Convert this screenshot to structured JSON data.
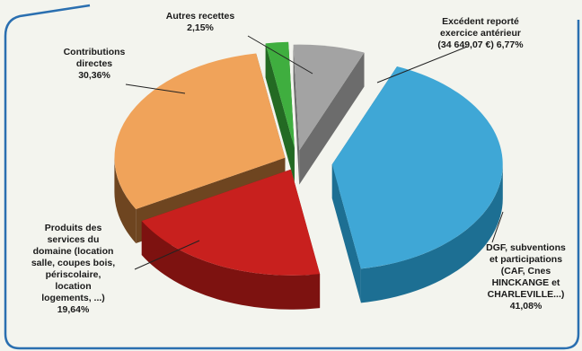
{
  "chart_data": {
    "type": "pie",
    "title": "",
    "slices": [
      {
        "label": "Excédent reporté exercice antérieur (34 649,07 €)",
        "value": 6.77,
        "pct_text": "6,77%",
        "color": "#a3a3a3",
        "dark": "#6c6c6c"
      },
      {
        "label": "DGF, subventions et participations (CAF, Cnes HINCKANGE et CHARLEVILLE...)",
        "value": 41.08,
        "pct_text": "41,08%",
        "color": "#3fa7d6",
        "dark": "#1d6f93"
      },
      {
        "label": "Produits des services du domaine (location salle, coupes bois, périscolaire, location logements, ...)",
        "value": 19.64,
        "pct_text": "19,64%",
        "color": "#c8201e",
        "dark": "#7d1210"
      },
      {
        "label": "Contributions directes",
        "value": 30.36,
        "pct_text": "30,36%",
        "color": "#f0a35a",
        "dark": "#6e4520"
      },
      {
        "label": "Autres recettes",
        "value": 2.15,
        "pct_text": "2,15%",
        "color": "#3fae3f",
        "dark": "#236a23"
      }
    ]
  },
  "labels": {
    "excedent": {
      "line1": "Excédent reporté",
      "line2": "exercice antérieur",
      "line3": "(34 649,07 €) 6,77%"
    },
    "dgf": {
      "line1": "DGF, subventions",
      "line2": "et participations",
      "line3": "(CAF, Cnes",
      "line4": "HINCKANGE et",
      "line5": "CHARLEVILLE...)",
      "pct": "41,08%"
    },
    "produits": {
      "line1": "Produits des",
      "line2": "services du",
      "line3": "domaine (location",
      "line4": "salle, coupes bois,",
      "line5": "périscolaire,",
      "line6": "location",
      "line7": "logements, ...)",
      "pct": "19,64%"
    },
    "contributions": {
      "line1": "Contributions",
      "line2": "directes",
      "pct": "30,36%"
    },
    "autres": {
      "line1": "Autres recettes",
      "pct": "2,15%"
    }
  }
}
